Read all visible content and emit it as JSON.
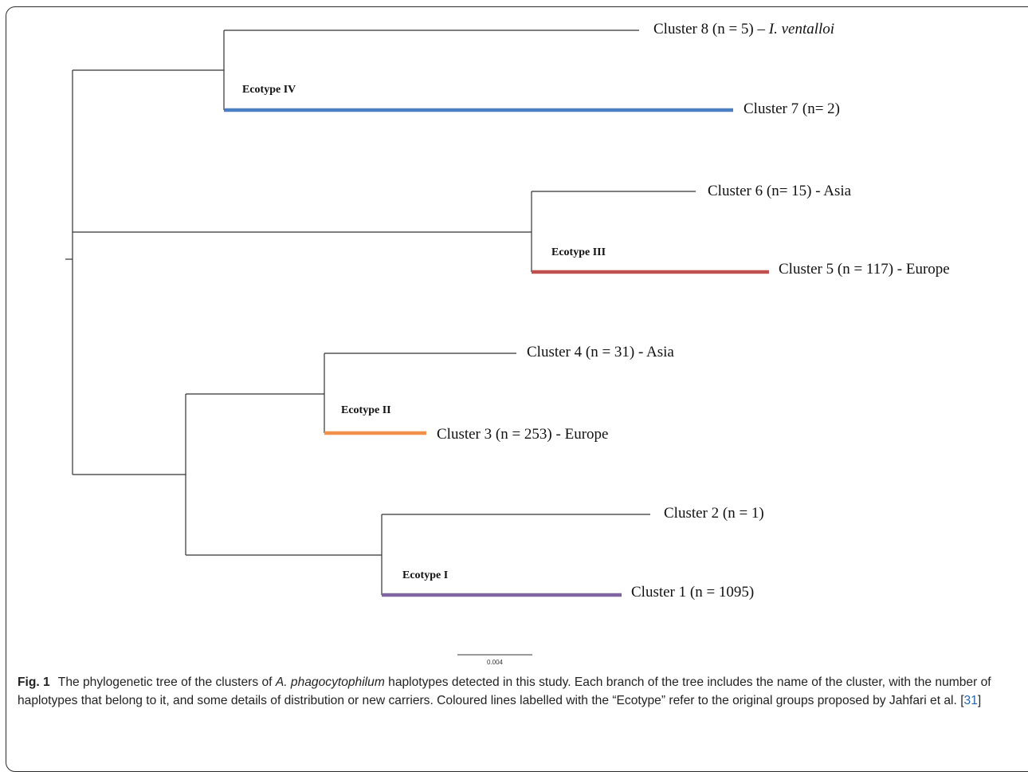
{
  "tree": {
    "leaves": [
      {
        "id": "c8",
        "prefix": "Cluster 8 (n = 5) – ",
        "italic": "I. ventalloi"
      },
      {
        "id": "c7",
        "prefix": "Cluster 7 (n= 2)",
        "italic": ""
      },
      {
        "id": "c6",
        "prefix": "Cluster 6 (n= 15) - Asia",
        "italic": ""
      },
      {
        "id": "c5",
        "prefix": "Cluster 5 (n = 117) - Europe",
        "italic": ""
      },
      {
        "id": "c4",
        "prefix": "Cluster 4 (n = 31) - Asia",
        "italic": ""
      },
      {
        "id": "c3",
        "prefix": "Cluster 3 (n = 253) - Europe",
        "italic": ""
      },
      {
        "id": "c2",
        "prefix": "Cluster 2 (n = 1)",
        "italic": ""
      },
      {
        "id": "c1",
        "prefix": "Cluster 1 (n = 1095)",
        "italic": ""
      }
    ],
    "ecotypes": [
      {
        "id": "e4",
        "label": "Ecotype IV",
        "color": "#4a7fc1"
      },
      {
        "id": "e3",
        "label": "Ecotype III",
        "color": "#c0504d"
      },
      {
        "id": "e2",
        "label": "Ecotype II",
        "color": "#f0904a"
      },
      {
        "id": "e1",
        "label": "Ecotype I",
        "color": "#8064a2"
      }
    ],
    "scale_bar_label": "0.004"
  },
  "caption": {
    "fig_label": "Fig. 1",
    "text_1": "The phylogenetic tree of the clusters of ",
    "species": "A. phagocytophilum",
    "text_2": " haplotypes detected in this study. Each branch of the tree includes the name of the cluster, with the number of haplotypes that belong to it, and some details of distribution or new carriers. Coloured lines labelled with the “Ecotype” refer to the original groups proposed by Jahfari et al. ",
    "ref_open": "[",
    "ref_number": "31",
    "ref_close": "]"
  }
}
